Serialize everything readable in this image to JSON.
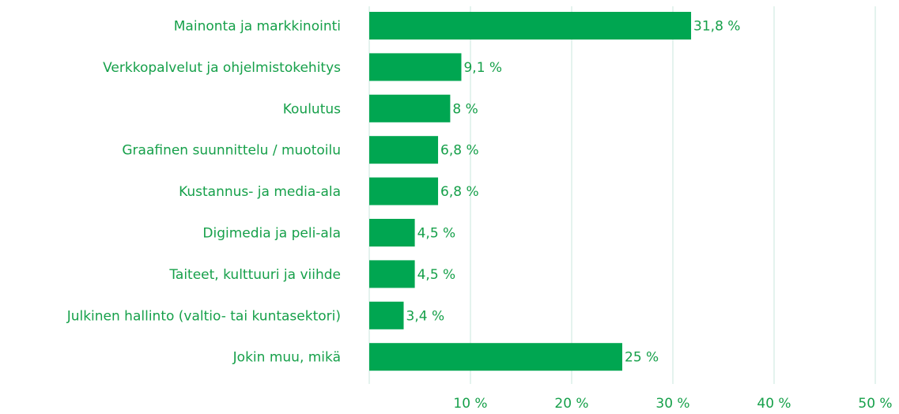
{
  "chart_data": {
    "type": "barh",
    "categories": [
      "Mainonta ja markkinointi",
      "Verkkopalvelut ja ohjelmistokehitys",
      "Koulutus",
      "Graafinen suunnittelu / muotoilu",
      "Kustannus- ja media-ala",
      "Digimedia ja peli-ala",
      "Taiteet, kulttuuri ja viihde",
      "Julkinen hallinto (valtio- tai kuntasektori)",
      "Jokin muu, mikä"
    ],
    "values": [
      31.8,
      9.1,
      8,
      6.8,
      6.8,
      4.5,
      4.5,
      3.4,
      25
    ],
    "value_labels": [
      "31,8 %",
      "9,1 %",
      "8 %",
      "6,8 %",
      "6,8 %",
      "4,5 %",
      "4,5 %",
      "3,4 %",
      "25 %"
    ],
    "color": "#00a651",
    "xlim": [
      0,
      50
    ],
    "xticks": [
      {
        "value": 10,
        "label": "10 %"
      },
      {
        "value": 20,
        "label": "20 %"
      },
      {
        "value": 30,
        "label": "30 %"
      },
      {
        "value": 40,
        "label": "40 %"
      },
      {
        "value": 50,
        "label": "50 %"
      }
    ],
    "grid": true
  }
}
